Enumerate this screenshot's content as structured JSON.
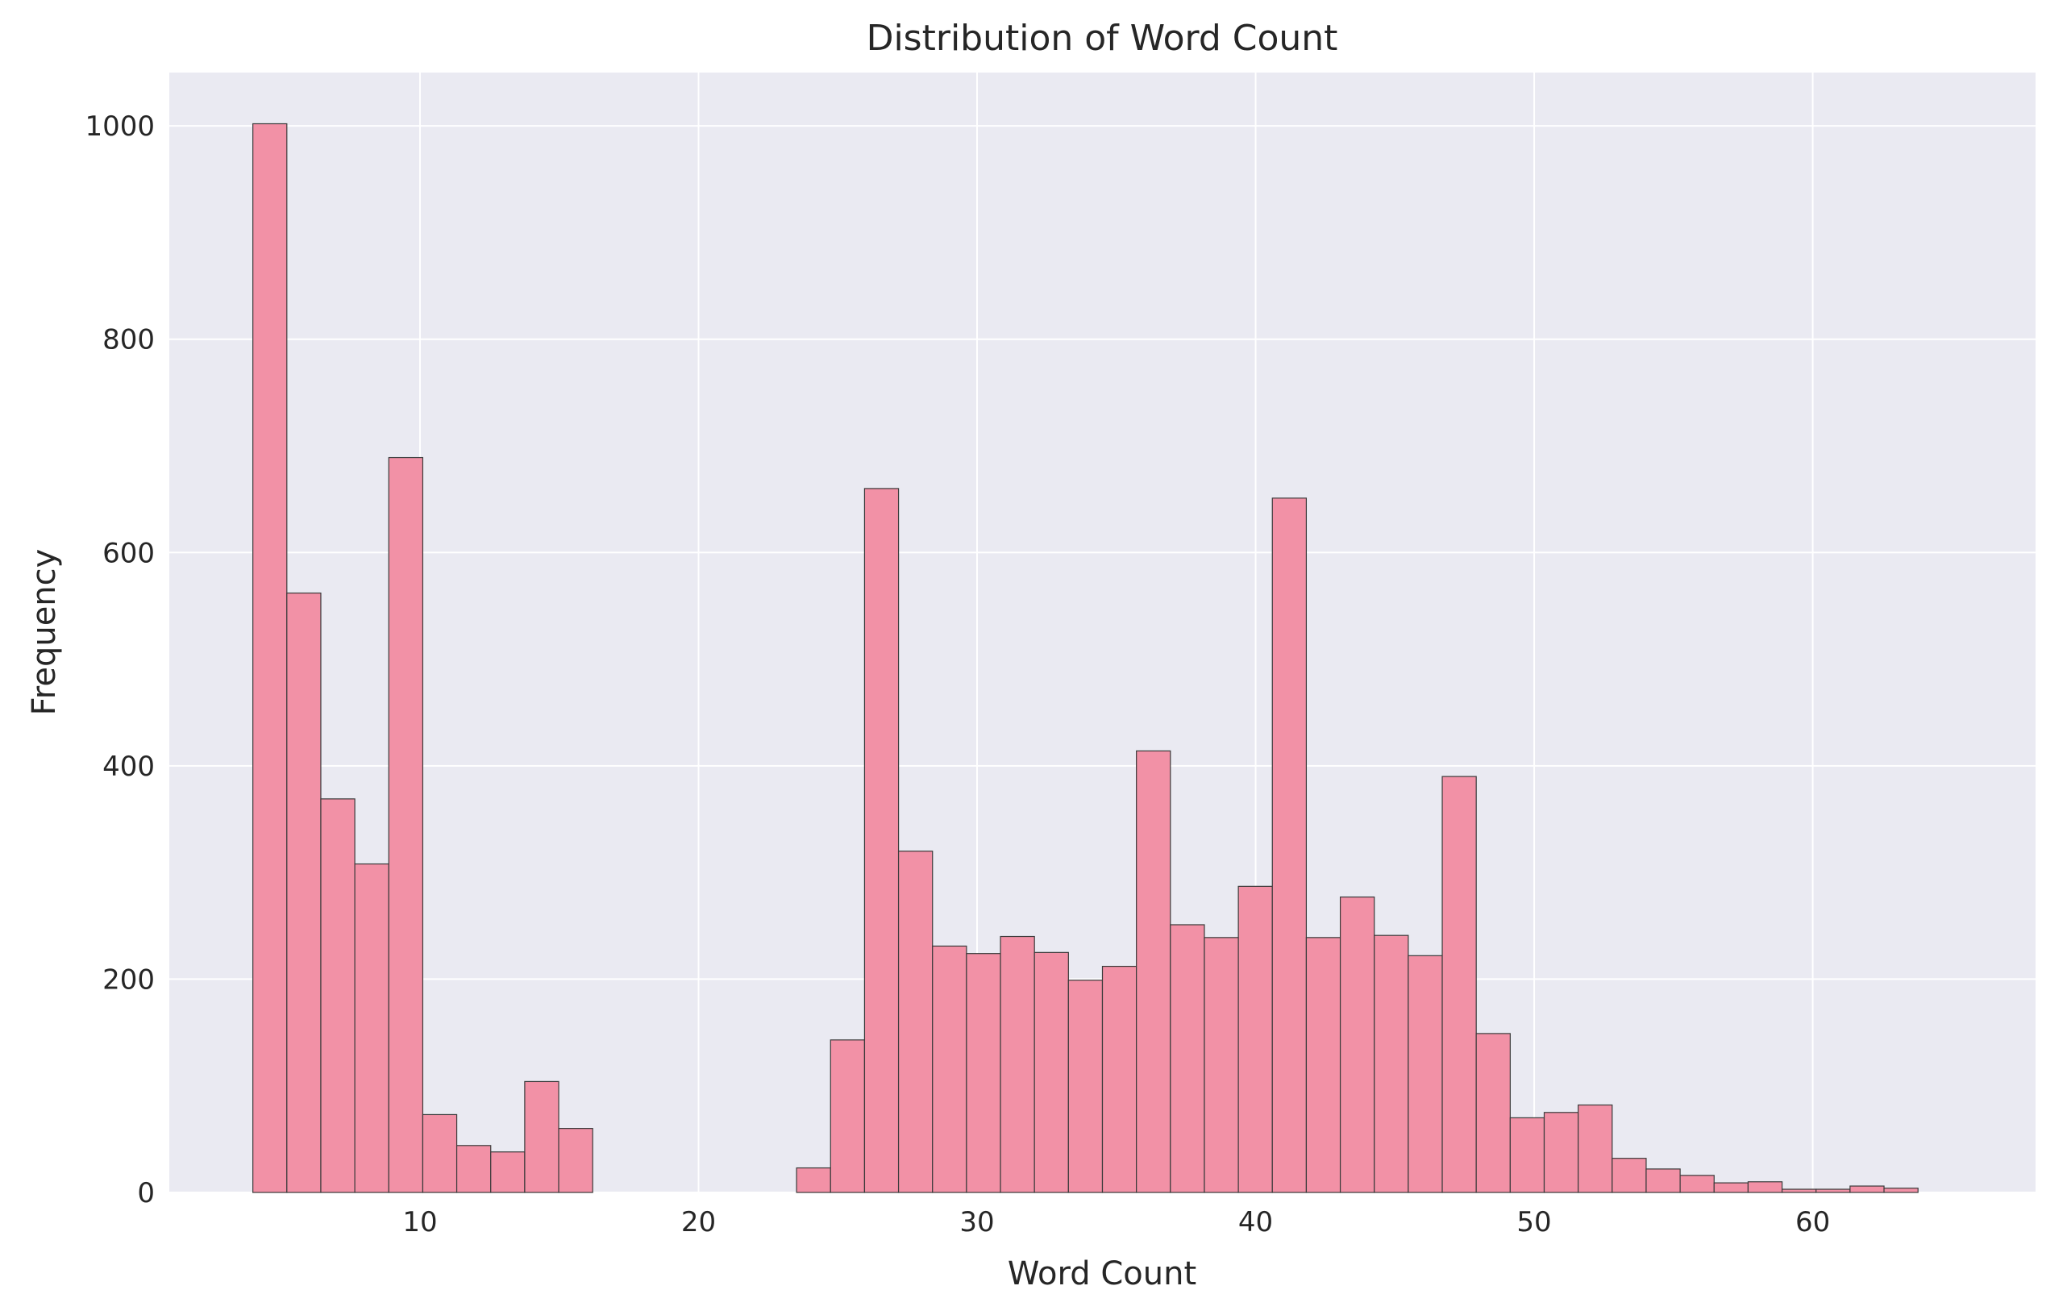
{
  "chart_data": {
    "type": "bar",
    "title": "Distribution of Word Count",
    "xlabel": "Word Count",
    "ylabel": "Frequency",
    "xlim": [
      1.0,
      68.0
    ],
    "ylim": [
      0,
      1050
    ],
    "xticks": [
      10,
      20,
      30,
      40,
      50,
      60
    ],
    "yticks": [
      0,
      200,
      400,
      600,
      800,
      1000
    ],
    "grid": true,
    "bin_width": 1.22,
    "bin_start": 4.0,
    "values": [
      1002,
      562,
      369,
      308,
      689,
      73,
      44,
      38,
      104,
      60,
      0,
      0,
      0,
      0,
      0,
      0,
      23,
      143,
      660,
      320,
      231,
      224,
      240,
      225,
      199,
      212,
      414,
      251,
      239,
      287,
      651,
      239,
      277,
      241,
      222,
      390,
      149,
      70,
      75,
      82,
      32,
      22,
      16,
      9,
      10,
      3,
      3,
      6,
      4
    ],
    "colors": {
      "plot_background": "#eaeaf2",
      "grid": "#ffffff",
      "bar_fill": "#f291a6",
      "bar_edge": "#3a3a3a",
      "text": "#262626"
    }
  }
}
